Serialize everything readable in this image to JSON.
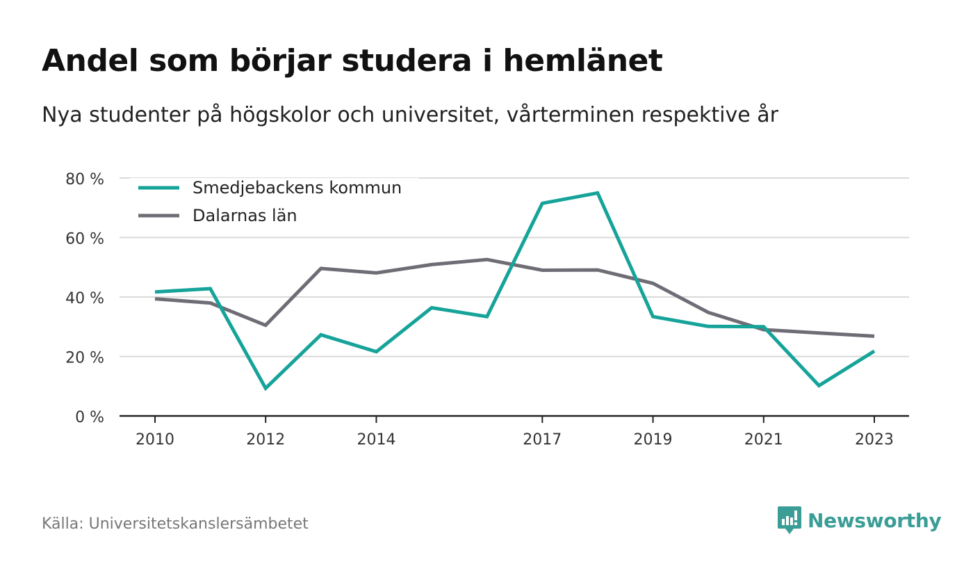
{
  "header": {
    "title": "Andel som börjar studera i hemlänet",
    "subtitle": "Nya studenter på högskolor och universitet, vårterminen respektive år"
  },
  "footer": {
    "source": "Källa: Universitetskanslersämbetet",
    "brand": "Newsworthy",
    "brand_icon": "newsworthy-logo-icon",
    "brand_color": "#3a9d96"
  },
  "chart_data": {
    "type": "line",
    "x": [
      2010,
      2011,
      2012,
      2013,
      2014,
      2015,
      2016,
      2017,
      2018,
      2019,
      2020,
      2021,
      2022,
      2023
    ],
    "x_tick_labels": [
      "2010",
      "2012",
      "2014",
      "2017",
      "2019",
      "2021",
      "2023"
    ],
    "x_tick_values": [
      2010,
      2012,
      2014,
      2017,
      2019,
      2021,
      2023
    ],
    "y_tick_labels": [
      "0 %",
      "20 %",
      "40 %",
      "60 %",
      "80 %"
    ],
    "y_tick_values": [
      0,
      20,
      40,
      60,
      80
    ],
    "ylim": [
      0,
      80
    ],
    "xlim": [
      2010,
      2023
    ],
    "grid": true,
    "legend_position": "top-left",
    "series": [
      {
        "name": "Smedjebackens kommun",
        "color": "#16a399",
        "values": [
          41.7,
          42.8,
          9.3,
          27.3,
          21.6,
          36.4,
          33.4,
          71.5,
          75.0,
          33.4,
          30.1,
          30.0,
          10.2,
          21.8
        ]
      },
      {
        "name": "Dalarnas län",
        "color": "#6e6d75",
        "values": [
          39.4,
          38.0,
          30.5,
          49.6,
          48.1,
          50.9,
          52.6,
          49.0,
          49.1,
          44.6,
          34.8,
          29.0,
          27.9,
          26.8
        ]
      }
    ]
  }
}
